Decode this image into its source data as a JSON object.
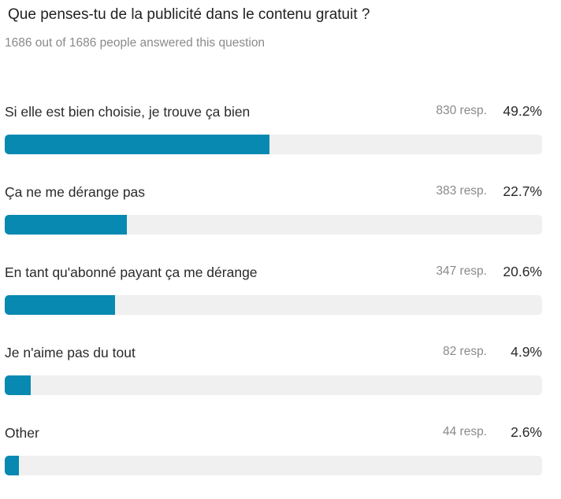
{
  "question": "Que penses-tu de la publicité dans le contenu gratuit ?",
  "answered_text": "1686 out of 1686 people answered this question",
  "colors": {
    "bar": "#0889b1",
    "track": "#f0f0f0"
  },
  "chart_data": {
    "type": "bar",
    "orientation": "horizontal",
    "categories": [
      "Si elle est bien choisie, je trouve ça bien",
      "Ça ne me dérange pas",
      "En tant qu'abonné payant ça me dérange",
      "Je n'aime pas du tout",
      "Other"
    ],
    "responses": [
      830,
      383,
      347,
      82,
      44
    ],
    "resp_labels": [
      "830 resp.",
      "383 resp.",
      "347 resp.",
      "82 resp.",
      "44 resp."
    ],
    "values": [
      49.2,
      22.7,
      20.6,
      4.9,
      2.6
    ],
    "pct_labels": [
      "49.2%",
      "22.7%",
      "20.6%",
      "4.9%",
      "2.6%"
    ],
    "xlim": [
      0,
      100
    ]
  }
}
